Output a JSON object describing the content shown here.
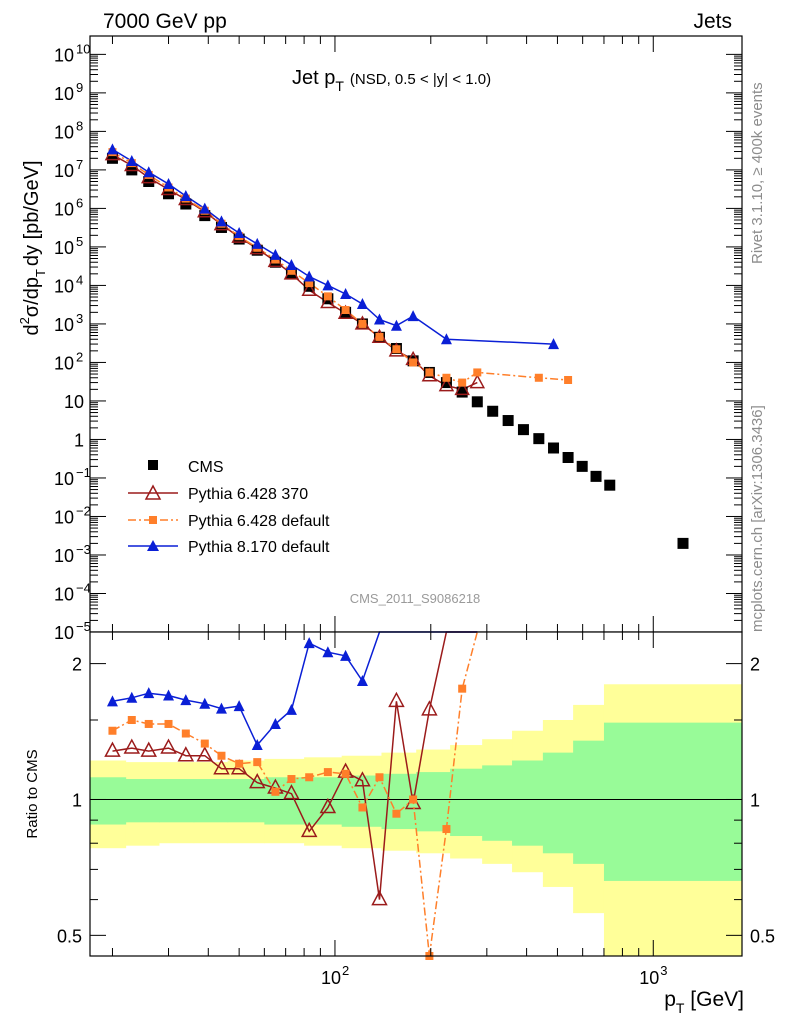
{
  "header": {
    "left": "7000 GeV pp",
    "right": "Jets"
  },
  "side_text": {
    "rivet": "Rivet 3.1.10, ≥ 400k events",
    "mcplots": "mcplots.cern.ch [arXiv:1306.3436]"
  },
  "watermark": "CMS_2011_S9086218",
  "chart_data": [
    {
      "type": "scatter",
      "panel": "main",
      "title": "Jet p_T (NSD, 0.5 < |y| < 1.0)",
      "title_main": "Jet p",
      "title_sub": "T",
      "title_rest": "(NSD, 0.5 < |y| < 1.0)",
      "ylabel": "d²σ/dp_T dy [pb/GeV]",
      "ylabel_parts": [
        "d",
        "2",
        "σ/dp",
        "T",
        "dy [pb/GeV]"
      ],
      "xscale": "log",
      "yscale": "log",
      "xlim": [
        17,
        1900
      ],
      "ylim": [
        1e-05,
        30000000000.0
      ],
      "y_ticks": [
        {
          "v": 10000000000.0,
          "label": "10",
          "exp": "10"
        },
        {
          "v": 1000000000.0,
          "label": "10",
          "exp": "9"
        },
        {
          "v": 100000000.0,
          "label": "10",
          "exp": "8"
        },
        {
          "v": 10000000.0,
          "label": "10",
          "exp": "7"
        },
        {
          "v": 1000000.0,
          "label": "10",
          "exp": "6"
        },
        {
          "v": 100000.0,
          "label": "10",
          "exp": "5"
        },
        {
          "v": 10000.0,
          "label": "10",
          "exp": "4"
        },
        {
          "v": 1000.0,
          "label": "10",
          "exp": "3"
        },
        {
          "v": 100,
          "label": "10",
          "exp": "2"
        },
        {
          "v": 10,
          "label": "10",
          "exp": ""
        },
        {
          "v": 1,
          "label": "1",
          "exp": ""
        },
        {
          "v": 0.1,
          "label": "10",
          "exp": "−1"
        },
        {
          "v": 0.01,
          "label": "10",
          "exp": "−2"
        },
        {
          "v": 0.001,
          "label": "10",
          "exp": "−3"
        },
        {
          "v": 0.0001,
          "label": "10",
          "exp": "−4"
        },
        {
          "v": 1e-05,
          "label": "10",
          "exp": "−5"
        }
      ],
      "legend_position": "lower-left",
      "series": [
        {
          "name": "CMS",
          "style": "square",
          "color": "#000000",
          "x": [
            20,
            23,
            26,
            30,
            34,
            39,
            44,
            50,
            57,
            65,
            73,
            83,
            95,
            108,
            122,
            138,
            156,
            176,
            198,
            224,
            251,
            280,
            313,
            350,
            391,
            437,
            486,
            540,
            598,
            661,
            730,
            1240
          ],
          "y": [
            20000000.0,
            10000000.0,
            5000000.0,
            2400000.0,
            1300000.0,
            650000.0,
            320000.0,
            160000.0,
            82000.0,
            40000.0,
            20000.0,
            9500.0,
            4500.0,
            2000.0,
            1000.0,
            450.0,
            230.0,
            110.0,
            55,
            30,
            17,
            9.5,
            5.4,
            3.1,
            1.8,
            1.05,
            0.6,
            0.34,
            0.2,
            0.11,
            0.065,
            0.002
          ]
        },
        {
          "name": "Pythia 6.428 370",
          "style": "open-triangle-solid-line",
          "color": "#9b1b1b",
          "x": [
            20,
            23,
            26,
            30,
            34,
            39,
            44,
            50,
            57,
            65,
            73,
            83,
            95,
            108,
            122,
            138,
            156,
            176,
            198,
            224,
            251,
            280
          ],
          "y": [
            25000000.0,
            13000000.0,
            6300000.0,
            3100000.0,
            1700000.0,
            820000.0,
            380000.0,
            180000.0,
            90000.0,
            42000.0,
            20000.0,
            7500.0,
            3600.0,
            1900.0,
            1000.0,
            450.0,
            200.0,
            120.0,
            45,
            25,
            20,
            30
          ]
        },
        {
          "name": "Pythia 6.428 default",
          "style": "square-dashdot-line",
          "color": "#ff7f2a",
          "x": [
            20,
            23,
            26,
            30,
            34,
            39,
            44,
            50,
            57,
            65,
            73,
            83,
            95,
            108,
            122,
            138,
            156,
            176,
            198,
            224,
            251,
            280,
            437,
            540
          ],
          "y": [
            29000000.0,
            15000000.0,
            7400000.0,
            3500000.0,
            1800000.0,
            870000.0,
            400000.0,
            190000.0,
            95000.0,
            47000.0,
            24000.0,
            11500.0,
            5200.0,
            2300.0,
            1000.0,
            460.0,
            220.0,
            100.0,
            55,
            40,
            30,
            55,
            40,
            35
          ]
        },
        {
          "name": "Pythia 8.170 default",
          "style": "triangle-solid-line",
          "color": "#0a1fd6",
          "x": [
            20,
            23,
            26,
            30,
            34,
            39,
            44,
            50,
            57,
            65,
            73,
            83,
            95,
            108,
            122,
            138,
            156,
            176,
            224,
            486
          ],
          "y": [
            34000000.0,
            17000000.0,
            8700000.0,
            4300000.0,
            2100000.0,
            990000.0,
            460000.0,
            230000.0,
            120000.0,
            62000.0,
            34000.0,
            17000.0,
            10000.0,
            6000.0,
            3300.0,
            1300.0,
            900.0,
            1600.0,
            400.0,
            300.0
          ]
        }
      ]
    },
    {
      "type": "line",
      "panel": "ratio",
      "ylabel": "Ratio to CMS",
      "xlabel": "p_T [GeV]",
      "xlabel_parts": [
        "p",
        "T",
        " [GeV]"
      ],
      "xscale": "log",
      "yscale": "log",
      "xlim": [
        17,
        1900
      ],
      "ylim": [
        0.45,
        2.35
      ],
      "x_ticks": [
        {
          "v": 100,
          "label": "10",
          "exp": "2"
        },
        {
          "v": 1000,
          "label": "10",
          "exp": "3"
        }
      ],
      "y_ticks": [
        {
          "v": 0.5,
          "label": "0.5"
        },
        {
          "v": 1,
          "label": "1"
        },
        {
          "v": 2,
          "label": "2"
        }
      ],
      "uncertainty_bands": {
        "stat_color": "#98fb98",
        "total_color": "#ffff99",
        "edges": [
          17,
          22,
          28,
          36,
          46,
          60,
          80,
          105,
          140,
          180,
          230,
          290,
          360,
          450,
          560,
          700,
          1900
        ],
        "total_hi": [
          1.22,
          1.21,
          1.21,
          1.21,
          1.22,
          1.23,
          1.24,
          1.25,
          1.27,
          1.29,
          1.32,
          1.36,
          1.42,
          1.5,
          1.62,
          1.8,
          1.8
        ],
        "total_lo": [
          0.78,
          0.79,
          0.8,
          0.8,
          0.8,
          0.8,
          0.79,
          0.78,
          0.77,
          0.76,
          0.74,
          0.72,
          0.69,
          0.64,
          0.56,
          0.45,
          0.45
        ],
        "stat_hi": [
          1.12,
          1.11,
          1.11,
          1.11,
          1.11,
          1.12,
          1.12,
          1.13,
          1.14,
          1.15,
          1.17,
          1.19,
          1.22,
          1.27,
          1.35,
          1.48,
          1.48
        ],
        "stat_lo": [
          0.88,
          0.89,
          0.89,
          0.89,
          0.89,
          0.88,
          0.88,
          0.87,
          0.86,
          0.85,
          0.83,
          0.81,
          0.79,
          0.76,
          0.72,
          0.66,
          0.66
        ]
      },
      "series": [
        {
          "name": "Pythia 6.428 370",
          "color": "#9b1b1b",
          "x": [
            20,
            23,
            26,
            30,
            34,
            39,
            44,
            50,
            57,
            65,
            73,
            83,
            95,
            108,
            122,
            138,
            156,
            176,
            198,
            224,
            251,
            280
          ],
          "y": [
            1.28,
            1.3,
            1.28,
            1.3,
            1.25,
            1.25,
            1.17,
            1.17,
            1.09,
            1.06,
            1.03,
            0.85,
            0.96,
            1.15,
            1.1,
            0.6,
            1.65,
            0.98,
            1.58,
            2.4,
            2.4,
            2.4
          ]
        },
        {
          "name": "Pythia 6.428 default",
          "color": "#ff7f2a",
          "x": [
            20,
            23,
            26,
            30,
            34,
            39,
            44,
            50,
            57,
            65,
            73,
            83,
            95,
            108,
            122,
            138,
            156,
            176,
            198,
            224,
            251,
            280
          ],
          "y": [
            1.42,
            1.5,
            1.47,
            1.47,
            1.4,
            1.33,
            1.25,
            1.2,
            1.21,
            1.04,
            1.11,
            1.12,
            1.15,
            1.14,
            0.96,
            1.12,
            0.93,
            1.0,
            0.42,
            0.86,
            1.76,
            2.4
          ]
        },
        {
          "name": "Pythia 8.170 default",
          "color": "#0a1fd6",
          "x": [
            20,
            23,
            26,
            30,
            34,
            39,
            44,
            50,
            57,
            65,
            73,
            83,
            95,
            108,
            122,
            138,
            156,
            176,
            198,
            224,
            251,
            280
          ],
          "y": [
            1.65,
            1.68,
            1.72,
            1.7,
            1.66,
            1.63,
            1.59,
            1.61,
            1.32,
            1.47,
            1.58,
            2.22,
            2.12,
            2.08,
            1.83,
            2.4,
            2.4,
            2.4,
            2.4,
            2.4,
            2.4,
            2.4
          ]
        }
      ]
    }
  ]
}
